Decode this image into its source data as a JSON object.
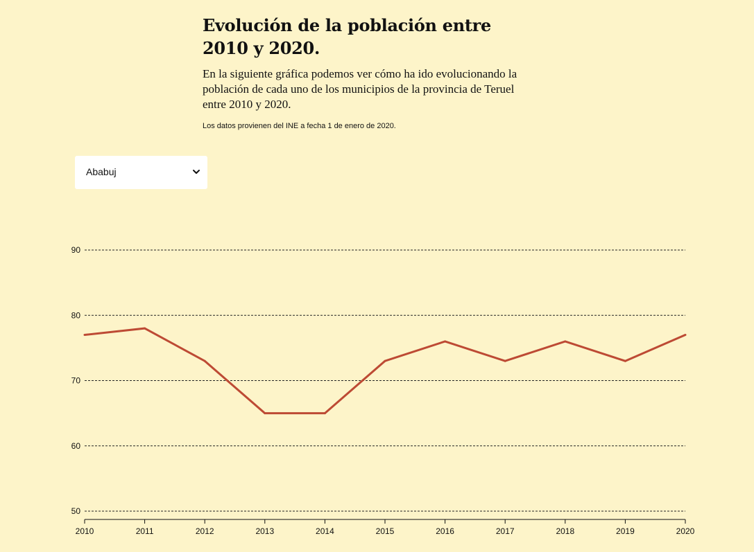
{
  "header": {
    "title": "Evolución de la población entre 2010 y 2020.",
    "subtitle": "En la siguiente gráfica podemos ver cómo ha ido evolucionando la población de cada uno de los municipios de la provincia de Teruel entre 2010 y 2020.",
    "source": "Los datos provienen del INE a fecha 1 de enero de 2020."
  },
  "selector": {
    "value": "Ababuj",
    "icon": "chevron-down-icon"
  },
  "chart_data": {
    "type": "line",
    "x": [
      2010,
      2011,
      2012,
      2013,
      2014,
      2015,
      2016,
      2017,
      2018,
      2019,
      2020
    ],
    "series": [
      {
        "values": [
          77,
          78,
          73,
          65,
          65,
          73,
          76,
          73,
          76,
          73,
          77
        ],
        "color": "#bd4a34"
      }
    ],
    "ylim": [
      50,
      90
    ],
    "yticks": [
      50,
      60,
      70,
      80,
      90
    ],
    "xticks": [
      "2010",
      "2011",
      "2012",
      "2013",
      "2014",
      "2015",
      "2016",
      "2017",
      "2018",
      "2019",
      "2020"
    ],
    "grid": "horizontal dotted",
    "background": "#fdf4c9"
  }
}
